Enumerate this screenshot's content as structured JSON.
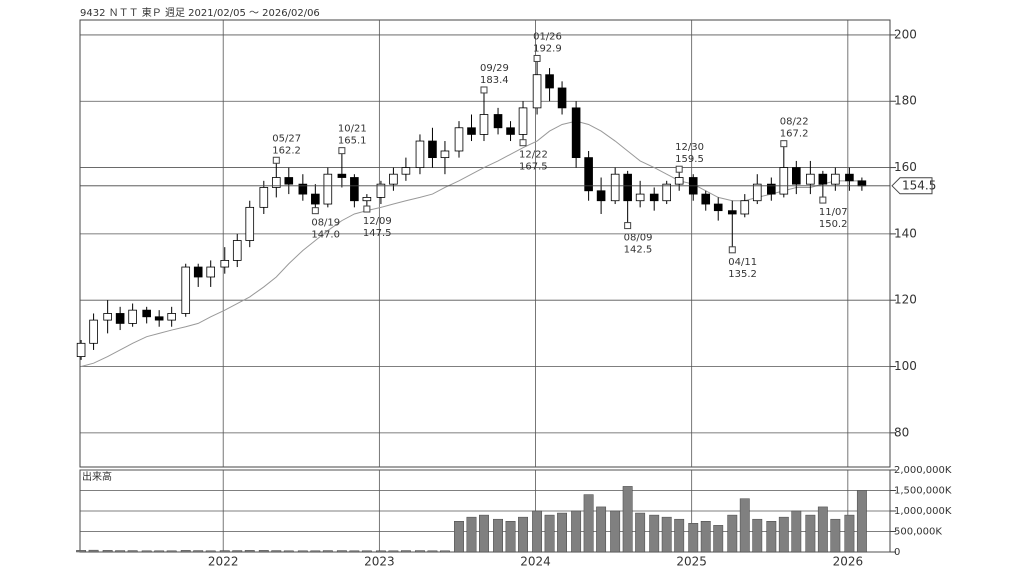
{
  "title": "9432 ＮＴＴ 東Ｐ 週足 2021/02/05 ～ 2026/02/06",
  "chart_data": [
    {
      "type": "candlestick",
      "x": [
        2021.09,
        2021.17,
        2021.26,
        2021.34,
        2021.42,
        2021.51,
        2021.59,
        2021.67,
        2021.76,
        2021.84,
        2021.92,
        2022.01,
        2022.09,
        2022.17,
        2022.26,
        2022.34,
        2022.42,
        2022.51,
        2022.59,
        2022.67,
        2022.76,
        2022.84,
        2022.92,
        2023.01,
        2023.09,
        2023.17,
        2023.26,
        2023.34,
        2023.42,
        2023.51,
        2023.59,
        2023.67,
        2023.76,
        2023.84,
        2023.92,
        2024.01,
        2024.09,
        2024.17,
        2024.26,
        2024.34,
        2024.42,
        2024.51,
        2024.59,
        2024.67,
        2024.76,
        2024.84,
        2024.92,
        2025.01,
        2025.09,
        2025.17,
        2025.26,
        2025.34,
        2025.42,
        2025.51,
        2025.59,
        2025.67,
        2025.76,
        2025.84,
        2025.92,
        2026.01,
        2026.09
      ],
      "open": [
        103,
        107,
        114,
        116,
        113,
        117,
        115,
        114,
        116,
        130,
        127,
        130,
        132,
        138,
        148,
        154,
        157,
        155,
        152,
        149,
        158,
        157,
        150,
        151,
        155,
        158,
        160,
        168,
        163,
        165,
        172,
        170,
        176,
        172,
        170,
        178,
        188,
        184,
        178,
        163,
        153,
        150,
        158,
        150,
        152,
        150,
        155,
        157,
        152,
        149,
        147,
        146,
        150,
        155,
        152,
        160,
        155,
        158,
        155,
        158,
        156
      ],
      "high": [
        108,
        116,
        120,
        118,
        119,
        118,
        117,
        118,
        131,
        131,
        132,
        136,
        140,
        150,
        156,
        162.2,
        160,
        158,
        155,
        160,
        165.1,
        158,
        152,
        156,
        160,
        163,
        170,
        172,
        168,
        174,
        176,
        183.4,
        178,
        174,
        180,
        192.9,
        190,
        186,
        180,
        165,
        157,
        160,
        159,
        156,
        154,
        156,
        159.5,
        158,
        153,
        151,
        150,
        152,
        158,
        157,
        167.2,
        162,
        162,
        159,
        160,
        160,
        157
      ],
      "low": [
        102,
        105,
        110,
        111,
        112,
        113,
        112,
        112,
        115,
        124,
        124,
        128,
        130,
        136,
        146,
        151,
        152,
        150,
        147,
        148,
        154,
        148,
        147.5,
        149,
        153,
        156,
        158,
        160,
        158,
        163,
        168,
        168,
        170,
        168,
        167.5,
        176,
        180,
        176,
        160,
        150,
        146,
        149,
        142.5,
        148,
        147,
        149,
        153,
        150,
        147,
        144,
        135.2,
        145,
        149,
        150,
        151,
        152,
        152,
        150.2,
        153,
        153,
        153
      ],
      "close": [
        107,
        114,
        116,
        113,
        117,
        115,
        114,
        116,
        130,
        127,
        130,
        132,
        138,
        148,
        154,
        157,
        155,
        152,
        149,
        158,
        157,
        150,
        151,
        155,
        158,
        160,
        168,
        163,
        165,
        172,
        170,
        176,
        172,
        170,
        178,
        188,
        184,
        178,
        163,
        153,
        150,
        158,
        150,
        152,
        150,
        155,
        157,
        152,
        149,
        147,
        146,
        150,
        155,
        152,
        160,
        155,
        158,
        155,
        158,
        156,
        154.5
      ],
      "moving_average": [
        100,
        101,
        103,
        105,
        107,
        109,
        110,
        111,
        112,
        113,
        115,
        117,
        119,
        121,
        124,
        127,
        131,
        135,
        138,
        141,
        144,
        146,
        147,
        148,
        149,
        150,
        151,
        152,
        154,
        156,
        158,
        160,
        162,
        164,
        166,
        168,
        171,
        173,
        174,
        173,
        171,
        168,
        165,
        162,
        160,
        158,
        156,
        155,
        153,
        151,
        150,
        150,
        151,
        152,
        153,
        154,
        154,
        155,
        156,
        156,
        156
      ],
      "up_color": "#ffffff",
      "down_color": "#000000",
      "ma_color": "#999999",
      "xlim": [
        2021.083,
        2026.27
      ],
      "xticks": [
        2022,
        2023,
        2024,
        2025,
        2026
      ],
      "ylim": [
        69.7,
        204.5
      ],
      "yticks": [
        80,
        100,
        120,
        140,
        160,
        180,
        200
      ],
      "grid": true,
      "last_price": 154.5,
      "annotations": [
        {
          "text": "05/27",
          "x": 2022.34,
          "price": 162.2,
          "position": "above"
        },
        {
          "text": "10/21",
          "x": 2022.76,
          "price": 165.1,
          "position": "above"
        },
        {
          "text": "09/29",
          "x": 2023.67,
          "price": 183.4,
          "position": "above"
        },
        {
          "text": "01/26",
          "x": 2024.01,
          "price": 192.9,
          "position": "above"
        },
        {
          "text": "12/30",
          "x": 2024.92,
          "price": 159.5,
          "position": "above"
        },
        {
          "text": "08/22",
          "x": 2025.59,
          "price": 167.2,
          "position": "above"
        },
        {
          "text": "08/19",
          "x": 2022.59,
          "price": {
            "value": 147,
            "label": "147.0"
          },
          "position": "below"
        },
        {
          "text": "12/09",
          "x": 2022.92,
          "price": 147.5,
          "position": "below"
        },
        {
          "text": "12/22",
          "x": 2023.92,
          "price": 167.5,
          "position": "below"
        },
        {
          "text": "08/09",
          "x": 2024.59,
          "price": 142.5,
          "position": "below"
        },
        {
          "text": "04/11",
          "x": 2025.26,
          "price": 135.2,
          "position": "below"
        },
        {
          "text": "11/07",
          "x": 2025.84,
          "price": 150.2,
          "position": "below"
        }
      ]
    },
    {
      "type": "bar",
      "title": "出来高",
      "x": [
        2021.09,
        2021.17,
        2021.26,
        2021.34,
        2021.42,
        2021.51,
        2021.59,
        2021.67,
        2021.76,
        2021.84,
        2021.92,
        2022.01,
        2022.09,
        2022.17,
        2022.26,
        2022.34,
        2022.42,
        2022.51,
        2022.59,
        2022.67,
        2022.76,
        2022.84,
        2022.92,
        2023.01,
        2023.09,
        2023.17,
        2023.26,
        2023.34,
        2023.42,
        2023.51,
        2023.59,
        2023.67,
        2023.76,
        2023.84,
        2023.92,
        2024.01,
        2024.09,
        2024.17,
        2024.26,
        2024.34,
        2024.42,
        2024.51,
        2024.59,
        2024.67,
        2024.76,
        2024.84,
        2024.92,
        2025.01,
        2025.09,
        2025.17,
        2025.26,
        2025.34,
        2025.42,
        2025.51,
        2025.59,
        2025.67,
        2025.76,
        2025.84,
        2025.92,
        2026.01,
        2026.09
      ],
      "values": [
        40000,
        45000,
        40000,
        35000,
        35000,
        30000,
        30000,
        30000,
        40000,
        35000,
        30000,
        35000,
        35000,
        40000,
        40000,
        35000,
        30000,
        30000,
        30000,
        35000,
        35000,
        30000,
        30000,
        30000,
        30000,
        35000,
        35000,
        30000,
        30000,
        750000,
        850000,
        900000,
        800000,
        750000,
        850000,
        1000000,
        900000,
        950000,
        1000000,
        1400000,
        1100000,
        1000000,
        1600000,
        950000,
        900000,
        850000,
        800000,
        700000,
        750000,
        650000,
        900000,
        1300000,
        800000,
        750000,
        850000,
        1000000,
        900000,
        1100000,
        800000,
        900000,
        1500000
      ],
      "color": "#808080",
      "xlim": [
        2021.083,
        2026.27
      ],
      "xticks": [
        2022,
        2023,
        2024,
        2025,
        2026
      ],
      "ylim": [
        0,
        2000000
      ],
      "yticks": [
        0,
        {
          "value": 500000,
          "label": "500,000K"
        },
        {
          "value": 1000000,
          "label": "1,000,000K"
        },
        {
          "value": 1500000,
          "label": "1,500,000K"
        },
        {
          "value": 2000000,
          "label": "2,000,000K"
        }
      ],
      "grid": true
    }
  ]
}
